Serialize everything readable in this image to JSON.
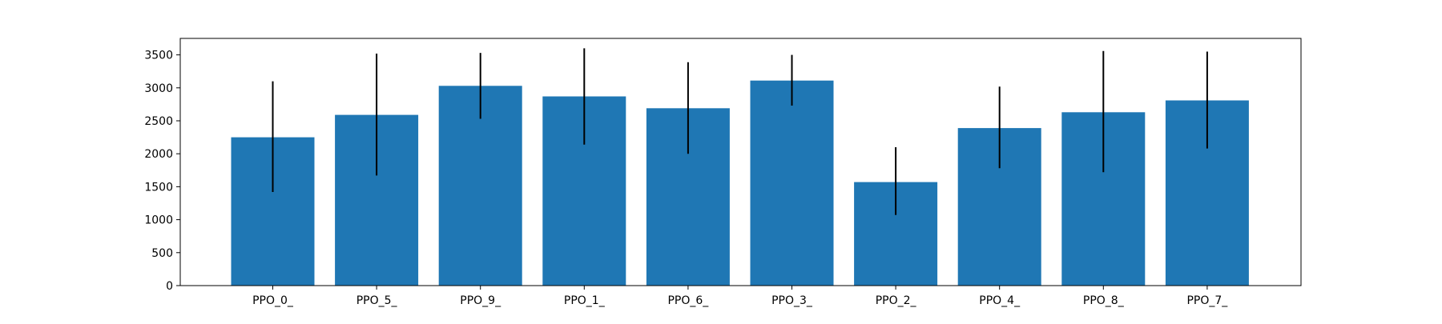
{
  "chart_data": {
    "type": "bar",
    "title": "",
    "xlabel": "",
    "ylabel": "",
    "categories": [
      "PPO_0_",
      "PPO_5_",
      "PPO_9_",
      "PPO_1_",
      "PPO_6_",
      "PPO_3_",
      "PPO_2_",
      "PPO_4_",
      "PPO_8_",
      "PPO_7_"
    ],
    "values": [
      2250,
      2590,
      3030,
      2870,
      2690,
      3110,
      1570,
      2390,
      2630,
      2810
    ],
    "error_low": [
      1420,
      1670,
      2530,
      2140,
      2000,
      2730,
      1070,
      1780,
      1720,
      2080
    ],
    "error_high": [
      3100,
      3520,
      3530,
      3600,
      3390,
      3500,
      2100,
      3020,
      3560,
      3550
    ],
    "ylim": [
      0,
      3750
    ],
    "yticks": [
      0,
      500,
      1000,
      1500,
      2000,
      2500,
      3000,
      3500
    ],
    "grid": false,
    "bar_color": "#1f77b4",
    "error_color": "#000000"
  }
}
